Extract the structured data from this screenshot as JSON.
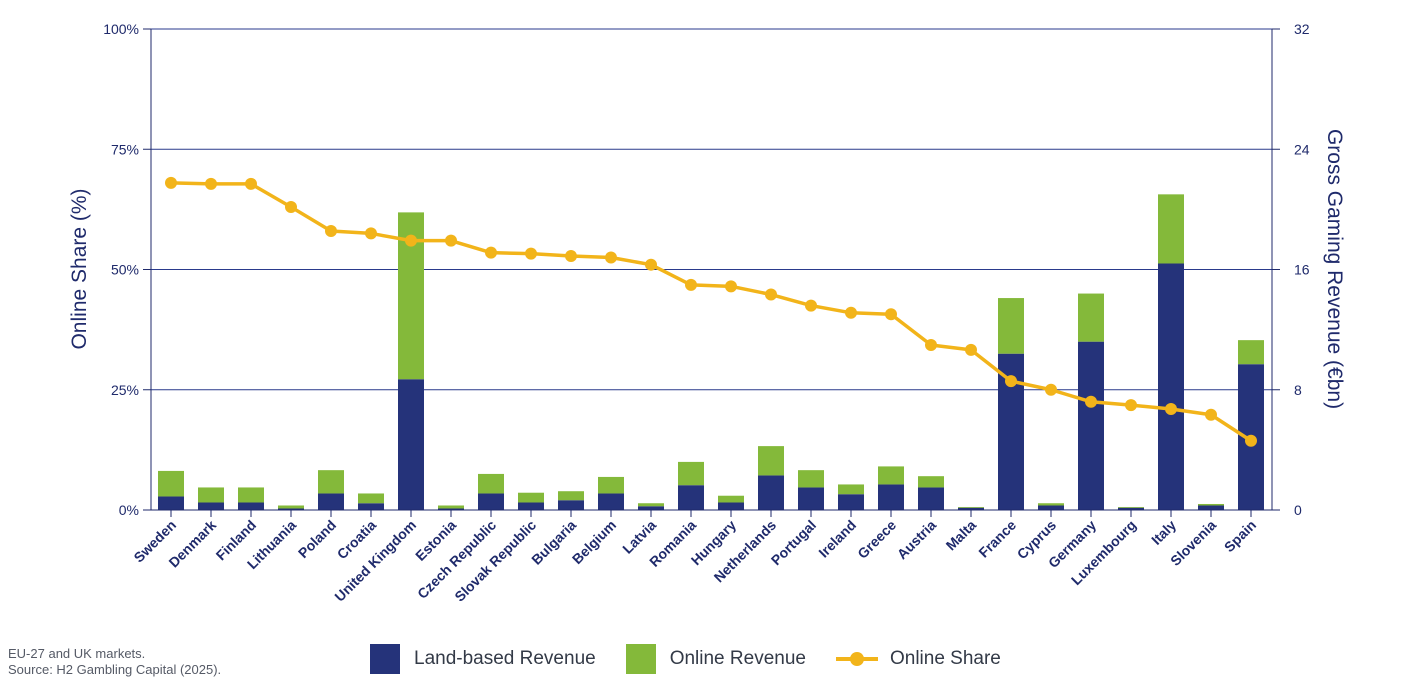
{
  "chart_data": {
    "type": "bar",
    "stacked": true,
    "categories": [
      "Sweden",
      "Denmark",
      "Finland",
      "Lithuania",
      "Poland",
      "Croatia",
      "United Kingdom",
      "Estonia",
      "Czech Republic",
      "Slovak Republic",
      "Bulgaria",
      "Belgium",
      "Latvia",
      "Romania",
      "Hungary",
      "Netherlands",
      "Portugal",
      "Ireland",
      "Greece",
      "Austria",
      "Malta",
      "France",
      "Cyprus",
      "Germany",
      "Luxembourg",
      "Italy",
      "Slovenia",
      "Spain"
    ],
    "series": [
      {
        "name": "Land-based Revenue",
        "kind": "bar",
        "axis": "right",
        "color": "#25337a",
        "values": [
          0.9,
          0.5,
          0.5,
          0.1,
          1.1,
          0.45,
          8.7,
          0.1,
          1.1,
          0.5,
          0.65,
          1.1,
          0.25,
          1.65,
          0.5,
          2.3,
          1.5,
          1.05,
          1.7,
          1.5,
          0.15,
          10.4,
          0.3,
          11.2,
          0.15,
          16.4,
          0.3,
          9.7
        ]
      },
      {
        "name": "Online Revenue",
        "kind": "bar",
        "axis": "right",
        "color": "#84b93a",
        "values": [
          1.7,
          1.0,
          1.0,
          0.2,
          1.55,
          0.65,
          11.1,
          0.2,
          1.3,
          0.65,
          0.6,
          1.1,
          0.2,
          1.55,
          0.45,
          1.95,
          1.15,
          0.65,
          1.2,
          0.75,
          0.05,
          3.7,
          0.15,
          3.2,
          0.05,
          4.6,
          0.1,
          1.6
        ]
      },
      {
        "name": "Online Share",
        "kind": "line",
        "axis": "left",
        "color": "#f2b41a",
        "values": [
          68.0,
          67.8,
          67.8,
          63.0,
          58.0,
          57.5,
          56.0,
          56.0,
          53.5,
          53.3,
          52.8,
          52.5,
          51.0,
          46.8,
          46.5,
          44.8,
          42.5,
          41.0,
          40.7,
          34.3,
          33.3,
          26.8,
          25.0,
          22.5,
          21.8,
          21.0,
          19.8,
          14.4
        ]
      }
    ],
    "y_left": {
      "label": "Online Share (%)",
      "lim": [
        0,
        100
      ],
      "ticks": [
        "0%",
        "25%",
        "50%",
        "75%",
        "100%"
      ],
      "tick_values": [
        0,
        25,
        50,
        75,
        100
      ]
    },
    "y_right": {
      "label": "Gross Gaming Revenue (€bn)",
      "lim": [
        0,
        32
      ],
      "ticks": [
        "0",
        "8",
        "16",
        "24",
        "32"
      ],
      "tick_values": [
        0,
        8,
        16,
        24,
        32
      ]
    },
    "grid": true,
    "legend_position": "bottom"
  },
  "notes": {
    "line1": "EU-27 and UK markets.",
    "line2": "Source: H2 Gambling Capital (2025)."
  },
  "legend": [
    {
      "label": "Land-based Revenue",
      "color": "#25337a",
      "kind": "box"
    },
    {
      "label": "Online Revenue",
      "color": "#84b93a",
      "kind": "box"
    },
    {
      "label": "Online Share",
      "color": "#f2b41a",
      "kind": "line"
    }
  ]
}
